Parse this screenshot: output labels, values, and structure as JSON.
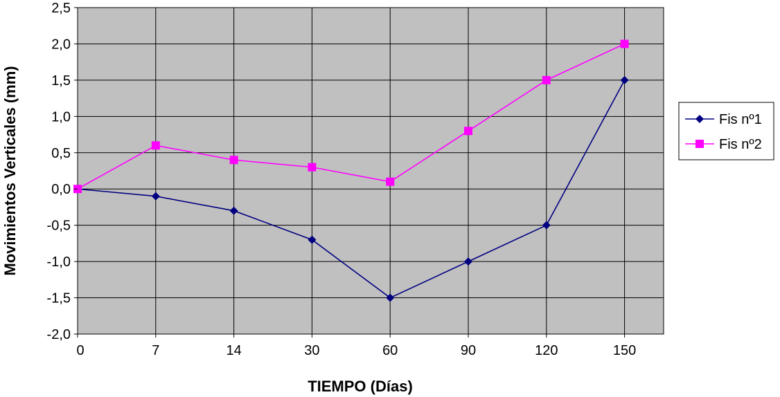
{
  "chart_data": {
    "type": "line",
    "categories": [
      "0",
      "7",
      "14",
      "30",
      "60",
      "90",
      "120",
      "150"
    ],
    "series": [
      {
        "name": "Fis nº1",
        "values": [
          0.0,
          -0.1,
          -0.3,
          -0.7,
          -1.5,
          -1.0,
          -0.5,
          1.5
        ],
        "color": "#000080",
        "marker": "diamond"
      },
      {
        "name": "Fis nº2",
        "values": [
          0.0,
          0.6,
          0.4,
          0.3,
          0.1,
          0.8,
          1.5,
          2.0
        ],
        "color": "#ff00ff",
        "marker": "square"
      }
    ],
    "xlabel": "TIEMPO (Días)",
    "ylabel": "Movimientos Verticales (mm)",
    "ylim": [
      -2.0,
      2.5
    ],
    "yticks": [
      "-2,0",
      "-1,5",
      "-1,0",
      "-0,5",
      "0,0",
      "0,5",
      "1,0",
      "1,5",
      "2,0",
      "2,5"
    ],
    "ytick_values": [
      -2.0,
      -1.5,
      -1.0,
      -0.5,
      0.0,
      0.5,
      1.0,
      1.5,
      2.0,
      2.5
    ],
    "grid": true,
    "plot_background": "#c0c0c0",
    "legend_placement": "right"
  }
}
